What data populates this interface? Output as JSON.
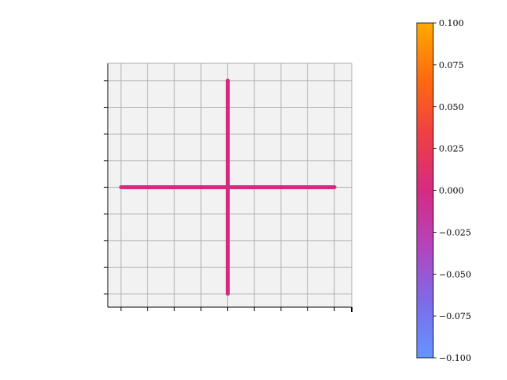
{
  "chart_data": {
    "type": "line",
    "segments": [
      {
        "x": [
          -4,
          4
        ],
        "y": [
          0,
          0
        ],
        "value": 0.0
      },
      {
        "x": [
          0,
          0
        ],
        "y": [
          -4,
          4
        ],
        "value": 0.0
      }
    ],
    "xlim": [
      -4.5,
      4.65
    ],
    "ylim": [
      -4.5,
      4.65
    ],
    "xticks": [
      -4,
      -3,
      -2,
      -1,
      0,
      1,
      2,
      3,
      4
    ],
    "yticks": [
      -4,
      -3,
      -2,
      -1,
      0,
      1,
      2,
      3,
      4
    ],
    "grid": true,
    "axes_facecolor": "#f2f2f2",
    "grid_color": "#b0b0b0",
    "line_color": "#d62a82",
    "colorbar": {
      "vmin": -0.1,
      "vmax": 0.1,
      "colormap": [
        "#6495ff",
        "#7d6be8",
        "#b444bd",
        "#d62a82",
        "#f03f44",
        "#ff6a10",
        "#ffaa00"
      ],
      "ticks": [
        -0.1,
        -0.075,
        -0.05,
        -0.025,
        0.0,
        0.025,
        0.05,
        0.075,
        0.1
      ],
      "tick_labels": [
        "−0.100",
        "−0.075",
        "−0.050",
        "−0.025",
        "0.000",
        "0.025",
        "0.050",
        "0.075",
        "0.100"
      ]
    }
  }
}
